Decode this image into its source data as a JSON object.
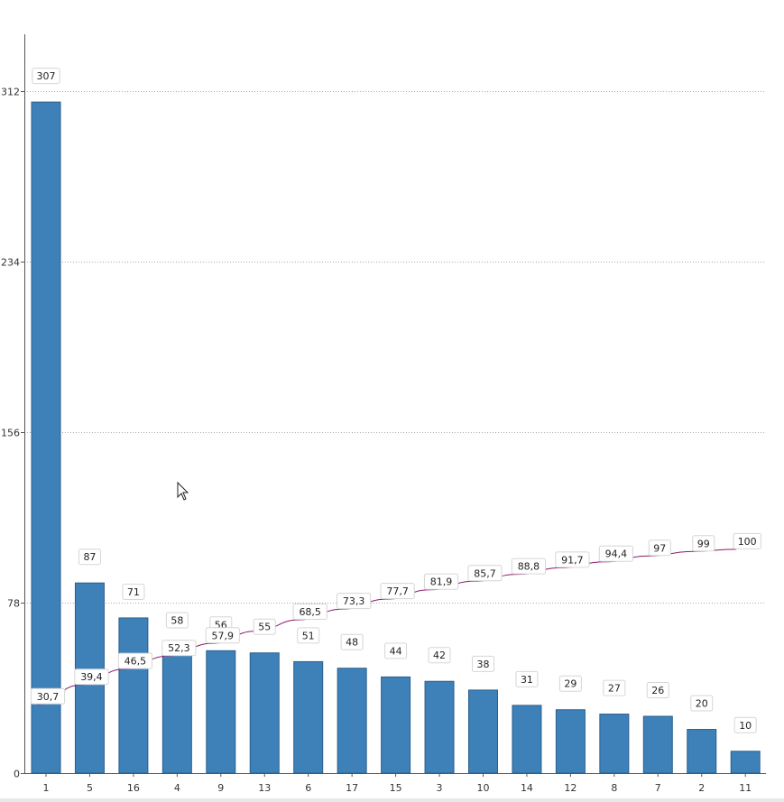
{
  "chart_data": {
    "type": "bar",
    "categories": [
      "1",
      "5",
      "16",
      "4",
      "9",
      "13",
      "6",
      "17",
      "15",
      "3",
      "10",
      "14",
      "12",
      "8",
      "7",
      "2",
      "11"
    ],
    "series": [
      {
        "type": "bar",
        "values": [
          307,
          87,
          71,
          58,
          56,
          55,
          51,
          48,
          44,
          42,
          38,
          31,
          29,
          27,
          26,
          20,
          10
        ],
        "labels": [
          "307",
          "87",
          "71",
          "58",
          "56",
          "55",
          "51",
          "48",
          "44",
          "42",
          "38",
          "31",
          "29",
          "27",
          "26",
          "20",
          "10"
        ],
        "color": "#3d81b8"
      },
      {
        "type": "line",
        "axis": "percent",
        "values": [
          30.7,
          39.4,
          46.5,
          52.3,
          57.9,
          63.4,
          68.5,
          73.3,
          77.7,
          81.9,
          85.7,
          88.8,
          91.7,
          94.4,
          97,
          99,
          100
        ],
        "labels": [
          "30,7",
          "39,4",
          "46,5",
          "52,3",
          "57,9",
          "",
          "68,5",
          "73,3",
          "77,7",
          "81,9",
          "85,7",
          "88,8",
          "91,7",
          "94,4",
          "97",
          "99",
          "100"
        ],
        "color": "#8b1a6b"
      }
    ],
    "yticks": [
      "0",
      "78",
      "156",
      "234",
      "312"
    ],
    "ytick_values": [
      0,
      78,
      156,
      234,
      312
    ],
    "ylim": [
      0,
      338
    ],
    "percent_lim": [
      0,
      330
    ],
    "grid": true,
    "legend": "none",
    "title": "",
    "xlabel": "",
    "ylabel": ""
  },
  "colors": {
    "bar_fill": "#3d81b8",
    "bar_stroke": "#2a5f8c",
    "line": "#8b1a6b",
    "axis": "#555555"
  }
}
